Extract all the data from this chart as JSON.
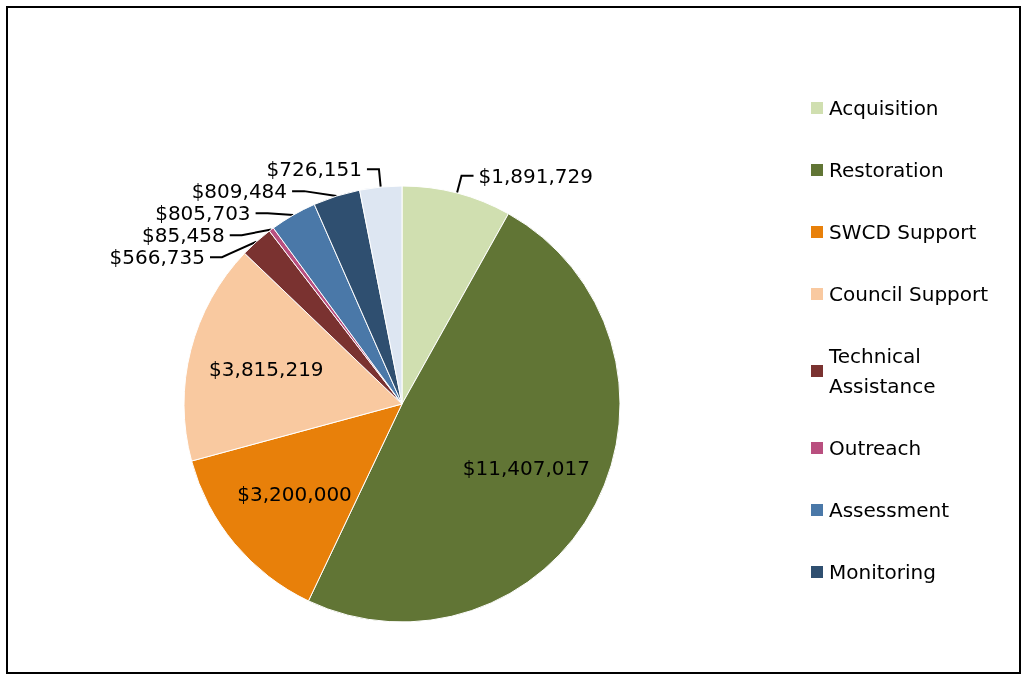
{
  "chart_data": {
    "type": "pie",
    "categories": [
      "Acquisition",
      "Restoration",
      "SWCD Support",
      "Council Support",
      "Technical Assistance",
      "Outreach",
      "Assessment",
      "Monitoring",
      null
    ],
    "values": [
      1891729,
      11407017,
      3200000,
      3815219,
      566735,
      85458,
      805703,
      809484,
      726151
    ],
    "colors": [
      "#d0dfb0",
      "#617535",
      "#e8800a",
      "#f9c9a0",
      "#7a3230",
      "#b94f7f",
      "#4a78a8",
      "#2f4f70",
      "#dde6f2"
    ],
    "value_labels": [
      "$1,891,729",
      "$11,407,017",
      "$3,200,000",
      "$3,815,219",
      "$566,735",
      "$85,458",
      "$805,703",
      "$809,484",
      "$726,151"
    ],
    "legend": "right"
  }
}
